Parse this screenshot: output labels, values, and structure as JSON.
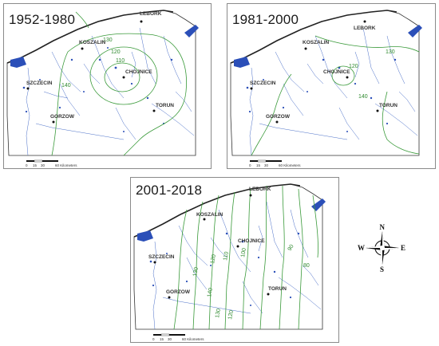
{
  "panels": [
    {
      "period": "1952-1980",
      "isolines": [
        "130",
        "120",
        "110",
        "140"
      ],
      "cities": [
        "LEBORK",
        "KOSZALIN",
        "SZCZECIN",
        "CHOJNICE",
        "TORUN",
        "GORZOW"
      ]
    },
    {
      "period": "1981-2000",
      "isolines": [
        "130",
        "120",
        "140"
      ],
      "cities": [
        "LEBORK",
        "KOSZALIN",
        "SZCZECIN",
        "CHOJNICE",
        "TORUN",
        "GORZOW"
      ]
    },
    {
      "period": "2001-2018",
      "isolines": [
        "100",
        "110",
        "120",
        "130",
        "140",
        "90",
        "80",
        "130",
        "120"
      ],
      "cities": [
        "LEBORK",
        "KOSZALIN",
        "SZCZECIN",
        "CHOJNICE",
        "TORUN",
        "GORZOW"
      ]
    }
  ],
  "scale_bar": {
    "ticks": [
      "0",
      "15",
      "30",
      "60 Kilometers"
    ]
  },
  "compass": {
    "n": "N",
    "s": "S",
    "e": "E",
    "w": "W"
  },
  "colors": {
    "water": "#2b4fb8",
    "isoline": "#3a9a3a",
    "coast": "#222222",
    "rivers": "#4a6fc8"
  }
}
